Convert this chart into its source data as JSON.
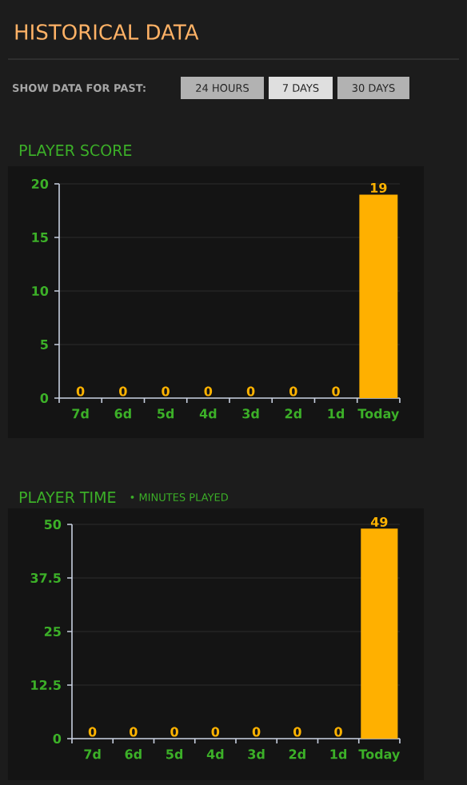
{
  "chart_data": [
    {
      "type": "bar",
      "title": "PLAYER SCORE",
      "annotations": [
        "HISTORICAL DATA",
        "SHOW DATA FOR PAST:",
        "24 HOURS",
        "7 DAYS",
        "30 DAYS"
      ],
      "categories": [
        "7d",
        "6d",
        "5d",
        "4d",
        "3d",
        "2d",
        "1d",
        "Today"
      ],
      "values": [
        0,
        0,
        0,
        0,
        0,
        0,
        0,
        19
      ],
      "color": "#ffb000",
      "ylim": [
        0,
        20
      ],
      "yticks": [
        0,
        5,
        10,
        15,
        20
      ],
      "grid": "y",
      "data_labels": true
    },
    {
      "type": "bar",
      "title": "PLAYER TIME",
      "subtitle": "• MINUTES PLAYED",
      "categories": [
        "7d",
        "6d",
        "5d",
        "4d",
        "3d",
        "2d",
        "1d",
        "Today"
      ],
      "values": [
        0,
        0,
        0,
        0,
        0,
        0,
        0,
        49
      ],
      "color": "#ffb000",
      "ylim": [
        0,
        50
      ],
      "yticks": [
        0,
        12.5,
        25,
        37.5,
        50
      ],
      "grid": "y",
      "data_labels": true
    }
  ]
}
